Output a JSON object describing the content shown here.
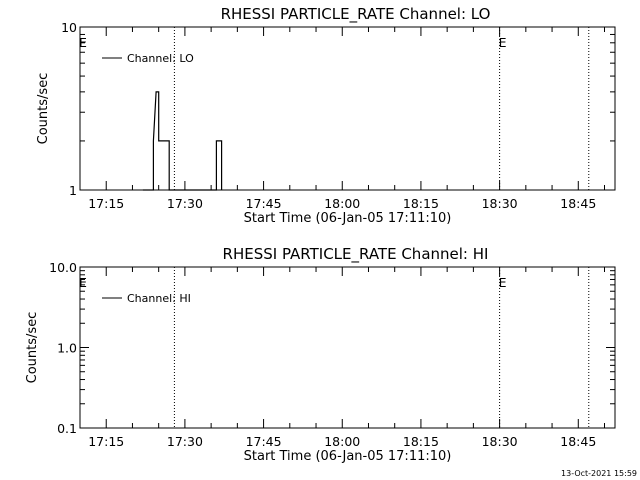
{
  "chart_data": [
    {
      "type": "line",
      "title": "RHESSI PARTICLE_RATE Channel: LO",
      "ylabel": "Counts/sec",
      "xlabel": "Start Time (06-Jan-05 17:11:10)",
      "y_scale": "log",
      "ylim": [
        1,
        10
      ],
      "y_ticks": [
        {
          "value": 1,
          "label": "1"
        },
        {
          "value": 10,
          "label": "10"
        }
      ],
      "xlim": [
        "17:10",
        "18:52"
      ],
      "x_ticks": [
        "17:15",
        "17:30",
        "17:45",
        "18:00",
        "18:15",
        "18:30",
        "18:45"
      ],
      "legend": {
        "position": "top-left",
        "entries": [
          "Channel: LO"
        ]
      },
      "markers": [
        {
          "label": "E",
          "time": "17:10"
        },
        {
          "label": "E",
          "time": "18:30"
        }
      ],
      "dotted_lines": [
        "17:28",
        "18:30",
        "18:47"
      ],
      "series": [
        {
          "name": "Channel: LO",
          "color": "#000000",
          "points": [
            [
              "17:22",
              1
            ],
            [
              "17:24",
              1
            ],
            [
              "17:24",
              2
            ],
            [
              "17:24.5",
              4
            ],
            [
              "17:25",
              4
            ],
            [
              "17:25",
              2
            ],
            [
              "17:27",
              2
            ],
            [
              "17:27",
              1
            ],
            [
              "17:34",
              1
            ],
            [
              "17:36",
              1
            ],
            [
              "17:36",
              2
            ],
            [
              "17:37",
              2
            ],
            [
              "17:37",
              1
            ]
          ]
        }
      ]
    },
    {
      "type": "line",
      "title": "RHESSI PARTICLE_RATE Channel: HI",
      "ylabel": "Counts/sec",
      "xlabel": "Start Time (06-Jan-05 17:11:10)",
      "y_scale": "log",
      "ylim": [
        0.1,
        10
      ],
      "y_ticks": [
        {
          "value": 0.1,
          "label": "0.1"
        },
        {
          "value": 1,
          "label": "1.0"
        },
        {
          "value": 10,
          "label": "10.0"
        }
      ],
      "xlim": [
        "17:10",
        "18:52"
      ],
      "x_ticks": [
        "17:15",
        "17:30",
        "17:45",
        "18:00",
        "18:15",
        "18:30",
        "18:45"
      ],
      "legend": {
        "position": "top-left",
        "entries": [
          "Channel: HI"
        ]
      },
      "markers": [
        {
          "label": "E",
          "time": "17:10"
        },
        {
          "label": "E",
          "time": "18:30"
        }
      ],
      "dotted_lines": [
        "17:28",
        "18:30",
        "18:47"
      ],
      "series": [
        {
          "name": "Channel: HI",
          "color": "#000000",
          "points": []
        }
      ]
    }
  ],
  "footer": {
    "timestamp": "13-Oct-2021 15:59"
  }
}
